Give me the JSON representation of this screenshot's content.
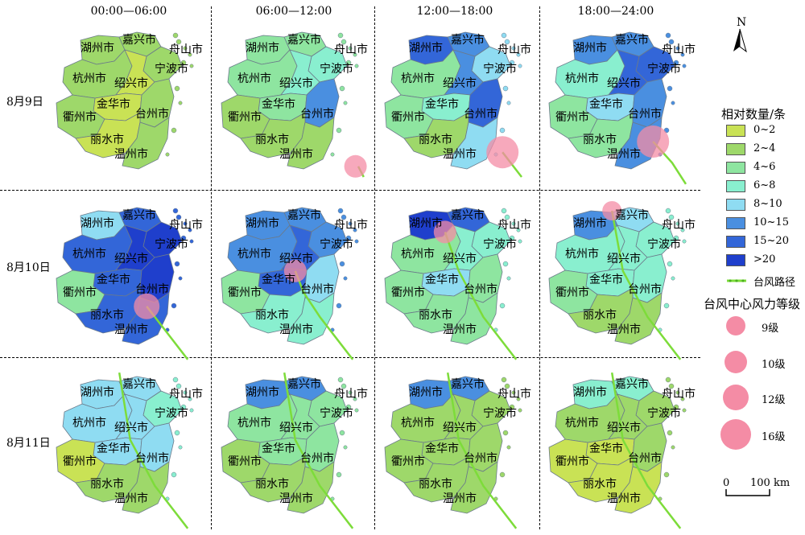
{
  "column_headers": [
    "00:00—06:00",
    "06:00—12:00",
    "12:00—18:00",
    "18:00—24:00"
  ],
  "row_headers": [
    "8月9日",
    "8月10日",
    "8月11日"
  ],
  "cities": {
    "huzhou": "湖州市",
    "jiaxing": "嘉兴市",
    "zhoushan": "舟山市",
    "hangzhou": "杭州市",
    "ningbo": "宁波市",
    "shaoxing": "绍兴市",
    "jinhua": "金华市",
    "quzhou": "衢州市",
    "taizhou": "台州市",
    "lishui": "丽水市",
    "wenzhou": "温州市"
  },
  "north_arrow": "N",
  "legend": {
    "count_title": "相对数量/条",
    "classes": [
      {
        "label": "0~2",
        "color": "#c9e255"
      },
      {
        "label": "2~4",
        "color": "#9ed86a"
      },
      {
        "label": "4~6",
        "color": "#8ee5a0"
      },
      {
        "label": "6~8",
        "color": "#89efcf"
      },
      {
        "label": "8~10",
        "color": "#8fdcf2"
      },
      {
        "label": "10~15",
        "color": "#4a8fe0"
      },
      {
        "label": "15~20",
        "color": "#3366d8"
      },
      {
        "label": ">20",
        "color": "#1f3fcc"
      }
    ],
    "track_label": "台风路径",
    "track_color": "#7ddc3a",
    "wind_title": "台风中心风力等级",
    "wind_levels": [
      "9级",
      "10级",
      "12级",
      "16级"
    ],
    "wind_color": "#f48ca5",
    "scale_label": "100 km",
    "scale_zero": "0"
  },
  "panels": [
    {
      "row": 0,
      "col": 0,
      "classes": {
        "huzhou": 1,
        "jiaxing": 1,
        "hangzhou": 1,
        "ningbo": 1,
        "shaoxing": 0,
        "jinhua": 0,
        "quzhou": 1,
        "taizhou": 1,
        "lishui": 0,
        "wenzhou": 1,
        "zhoushan": 1
      }
    },
    {
      "row": 0,
      "col": 1,
      "classes": {
        "huzhou": 2,
        "jiaxing": 2,
        "hangzhou": 2,
        "ningbo": 3,
        "shaoxing": 3,
        "jinhua": 2,
        "quzhou": 1,
        "taizhou": 5,
        "lishui": 1,
        "wenzhou": 1,
        "zhoushan": 2
      }
    },
    {
      "row": 0,
      "col": 2,
      "classes": {
        "huzhou": 6,
        "jiaxing": 5,
        "hangzhou": 2,
        "ningbo": 4,
        "shaoxing": 5,
        "jinhua": 3,
        "quzhou": 2,
        "taizhou": 6,
        "lishui": 1,
        "wenzhou": 4,
        "zhoushan": 4
      }
    },
    {
      "row": 0,
      "col": 3,
      "classes": {
        "huzhou": 5,
        "jiaxing": 5,
        "hangzhou": 3,
        "ningbo": 6,
        "shaoxing": 6,
        "jinhua": 4,
        "quzhou": 2,
        "taizhou": 5,
        "lishui": 2,
        "wenzhou": 5,
        "zhoushan": 5
      }
    },
    {
      "row": 1,
      "col": 0,
      "classes": {
        "huzhou": 4,
        "jiaxing": 6,
        "hangzhou": 6,
        "ningbo": 7,
        "shaoxing": 7,
        "jinhua": 6,
        "quzhou": 2,
        "taizhou": 7,
        "lishui": 6,
        "wenzhou": 6,
        "zhoushan": 6
      }
    },
    {
      "row": 1,
      "col": 1,
      "classes": {
        "huzhou": 5,
        "jiaxing": 5,
        "hangzhou": 5,
        "ningbo": 5,
        "shaoxing": 6,
        "jinhua": 6,
        "quzhou": 2,
        "taizhou": 4,
        "lishui": 3,
        "wenzhou": 3,
        "zhoushan": 5
      }
    },
    {
      "row": 1,
      "col": 2,
      "classes": {
        "huzhou": 7,
        "jiaxing": 6,
        "hangzhou": 2,
        "ningbo": 3,
        "shaoxing": 3,
        "jinhua": 4,
        "quzhou": 2,
        "taizhou": 2,
        "lishui": 2,
        "wenzhou": 2,
        "zhoushan": 3
      }
    },
    {
      "row": 1,
      "col": 3,
      "classes": {
        "huzhou": 5,
        "jiaxing": 4,
        "hangzhou": 3,
        "ningbo": 3,
        "shaoxing": 3,
        "jinhua": 3,
        "quzhou": 2,
        "taizhou": 3,
        "lishui": 1,
        "wenzhou": 1,
        "zhoushan": 3
      }
    },
    {
      "row": 2,
      "col": 0,
      "classes": {
        "huzhou": 4,
        "jiaxing": 4,
        "hangzhou": 4,
        "ningbo": 3,
        "shaoxing": 4,
        "jinhua": 4,
        "quzhou": 0,
        "taizhou": 4,
        "lishui": 1,
        "wenzhou": 1,
        "zhoushan": 3
      }
    },
    {
      "row": 2,
      "col": 1,
      "classes": {
        "huzhou": 5,
        "jiaxing": 5,
        "hangzhou": 2,
        "ningbo": 2,
        "shaoxing": 2,
        "jinhua": 2,
        "quzhou": 1,
        "taizhou": 2,
        "lishui": 1,
        "wenzhou": 1,
        "zhoushan": 2
      }
    },
    {
      "row": 2,
      "col": 2,
      "classes": {
        "huzhou": 5,
        "jiaxing": 5,
        "hangzhou": 1,
        "ningbo": 1,
        "shaoxing": 1,
        "jinhua": 1,
        "quzhou": 1,
        "taizhou": 1,
        "lishui": 1,
        "wenzhou": 1,
        "zhoushan": 1
      }
    },
    {
      "row": 2,
      "col": 3,
      "classes": {
        "huzhou": 3,
        "jiaxing": 3,
        "hangzhou": 1,
        "ningbo": 1,
        "shaoxing": 1,
        "jinhua": 0,
        "quzhou": 0,
        "taizhou": 1,
        "lishui": 0,
        "wenzhou": 0,
        "zhoushan": 1
      }
    }
  ],
  "typhoon": [
    {
      "row": 0,
      "col": 1,
      "wind": "10级",
      "center_lonlat": [
        122.9,
        27.5
      ],
      "track": [
        [
          123.2,
          27.2
        ],
        [
          123.0,
          27.5
        ]
      ]
    },
    {
      "row": 0,
      "col": 2,
      "wind": "16级",
      "center_lonlat": [
        122.3,
        27.9
      ],
      "track": [
        [
          123.0,
          27.2
        ],
        [
          122.6,
          27.6
        ],
        [
          122.3,
          27.9
        ]
      ]
    },
    {
      "row": 0,
      "col": 3,
      "wind": "16级",
      "center_lonlat": [
        121.8,
        28.2
      ],
      "track": [
        [
          123.0,
          27.0
        ],
        [
          122.5,
          27.6
        ],
        [
          121.8,
          28.2
        ]
      ]
    },
    {
      "row": 1,
      "col": 0,
      "wind": "12级",
      "center_lonlat": [
        121.3,
        28.5
      ],
      "track": [
        [
          122.8,
          27.0
        ],
        [
          122.2,
          27.6
        ],
        [
          121.6,
          28.2
        ],
        [
          121.3,
          28.5
        ]
      ]
    },
    {
      "row": 1,
      "col": 1,
      "wind": "10级",
      "center_lonlat": [
        120.7,
        29.5
      ],
      "track": [
        [
          122.8,
          27.0
        ],
        [
          121.6,
          28.2
        ],
        [
          121.0,
          28.9
        ],
        [
          120.7,
          29.5
        ]
      ]
    },
    {
      "row": 1,
      "col": 2,
      "wind": "10级",
      "center_lonlat": [
        120.2,
        30.6
      ],
      "track": [
        [
          122.8,
          27.0
        ],
        [
          121.6,
          28.2
        ],
        [
          120.7,
          29.5
        ],
        [
          120.2,
          30.6
        ]
      ]
    },
    {
      "row": 1,
      "col": 3,
      "wind": "9级",
      "center_lonlat": [
        120.3,
        31.2
      ],
      "track": [
        [
          122.8,
          27.0
        ],
        [
          121.6,
          28.2
        ],
        [
          120.7,
          29.5
        ],
        [
          120.3,
          31.2
        ]
      ]
    },
    {
      "row": 2,
      "col": 0,
      "wind": "",
      "center_lonlat": [
        120.3,
        31.4
      ],
      "track": [
        [
          122.8,
          27.0
        ],
        [
          121.6,
          28.2
        ],
        [
          120.7,
          29.5
        ],
        [
          120.3,
          31.4
        ]
      ]
    },
    {
      "row": 2,
      "col": 1,
      "wind": "",
      "center_lonlat": [
        120.3,
        31.4
      ],
      "track": [
        [
          122.8,
          27.0
        ],
        [
          121.6,
          28.2
        ],
        [
          120.7,
          29.5
        ],
        [
          120.3,
          31.4
        ]
      ]
    },
    {
      "row": 2,
      "col": 2,
      "wind": "",
      "center_lonlat": [
        120.3,
        31.4
      ],
      "track": [
        [
          122.8,
          27.0
        ],
        [
          121.6,
          28.2
        ],
        [
          120.7,
          29.5
        ],
        [
          120.3,
          31.4
        ]
      ]
    },
    {
      "row": 2,
      "col": 3,
      "wind": "",
      "center_lonlat": [
        120.3,
        31.4
      ],
      "track": [
        [
          122.8,
          27.0
        ],
        [
          121.6,
          28.2
        ],
        [
          120.7,
          29.5
        ],
        [
          120.3,
          31.4
        ]
      ]
    }
  ]
}
